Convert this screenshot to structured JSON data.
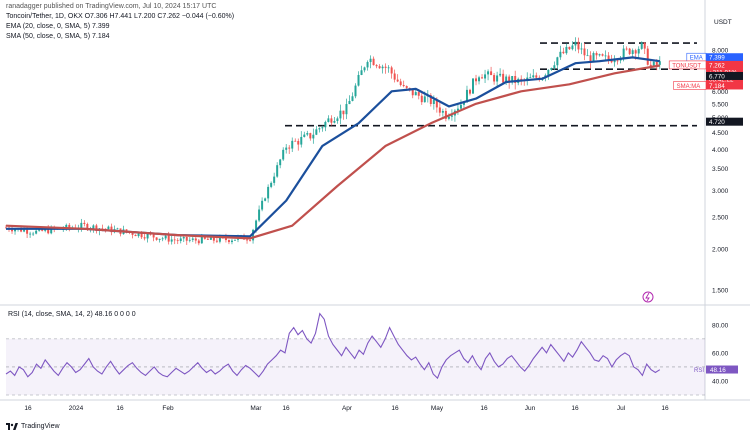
{
  "header": {
    "published_line": "ranadagger published on TradingView.com, Jul 10, 2024 15:17 UTC",
    "symbol_line": "Toncoin/Tether, 1D, OKX  O7.306  H7.441  L7.200  C7.262  −0.044 (−0.60%)",
    "ema_line": "EMA (20, close, 0, SMA, 5)  7.399",
    "sma_line": "SMA (50, close, 0, SMA, 5)  7.184"
  },
  "footer": {
    "brand": "TradingView"
  },
  "chart_data": [
    {
      "type": "candlestick",
      "title": "Toncoin/Tether, 1D, OKX",
      "currency_label": "USDT",
      "y_scale": "log",
      "ylim": [
        1.38,
        9.2
      ],
      "y_ticks": [
        "8.000",
        "7.000",
        "6.000",
        "5.500",
        "5.000",
        "4.500",
        "4.000",
        "3.500",
        "3.000",
        "2.500",
        "2.000",
        "1.500"
      ],
      "x_ticks": [
        "16",
        "2024",
        "16",
        "Feb",
        "Mar",
        "16",
        "Apr",
        "16",
        "May",
        "16",
        "Jun",
        "16",
        "Jul",
        "16"
      ],
      "ohlc_close_path": [
        [
          "2023-12-06",
          2.32
        ],
        [
          "2023-12-16",
          2.25
        ],
        [
          "2024-01-01",
          2.35
        ],
        [
          "2024-01-16",
          2.24
        ],
        [
          "2024-02-01",
          2.12
        ],
        [
          "2024-02-16",
          2.13
        ],
        [
          "2024-02-25",
          2.17
        ],
        [
          "2024-03-01",
          2.9
        ],
        [
          "2024-03-08",
          4.1
        ],
        [
          "2024-03-16",
          4.4
        ],
        [
          "2024-03-23",
          5.0
        ],
        [
          "2024-03-28",
          5.3
        ],
        [
          "2024-04-04",
          7.6
        ],
        [
          "2024-04-11",
          7.0
        ],
        [
          "2024-04-16",
          6.1
        ],
        [
          "2024-04-25",
          5.6
        ],
        [
          "2024-04-30",
          5.1
        ],
        [
          "2024-05-05",
          5.5
        ],
        [
          "2024-05-11",
          6.8
        ],
        [
          "2024-05-16",
          6.6
        ],
        [
          "2024-05-25",
          6.4
        ],
        [
          "2024-06-01",
          6.7
        ],
        [
          "2024-06-06",
          7.6
        ],
        [
          "2024-06-12",
          8.3
        ],
        [
          "2024-06-16",
          7.6
        ],
        [
          "2024-06-23",
          7.5
        ],
        [
          "2024-06-30",
          8.0
        ],
        [
          "2024-07-04",
          8.2
        ],
        [
          "2024-07-07",
          7.1
        ],
        [
          "2024-07-10",
          7.262
        ]
      ],
      "series": [
        {
          "name": "EMA (20, close)",
          "color": "#1b4f9c",
          "last": 7.399,
          "values": [
            [
              "2023-12-06",
              2.3
            ],
            [
              "2024-01-01",
              2.3
            ],
            [
              "2024-02-01",
              2.2
            ],
            [
              "2024-02-25",
              2.18
            ],
            [
              "2024-03-08",
              2.8
            ],
            [
              "2024-03-20",
              4.1
            ],
            [
              "2024-04-01",
              4.8
            ],
            [
              "2024-04-12",
              6.0
            ],
            [
              "2024-04-20",
              6.1
            ],
            [
              "2024-05-01",
              5.4
            ],
            [
              "2024-05-10",
              5.7
            ],
            [
              "2024-05-20",
              6.4
            ],
            [
              "2024-06-01",
              6.55
            ],
            [
              "2024-06-12",
              7.3
            ],
            [
              "2024-06-20",
              7.4
            ],
            [
              "2024-07-01",
              7.6
            ],
            [
              "2024-07-10",
              7.399
            ]
          ]
        },
        {
          "name": "SMA (50, close)",
          "color": "#c0504d",
          "last": 7.184,
          "values": [
            [
              "2023-12-06",
              2.35
            ],
            [
              "2024-01-01",
              2.3
            ],
            [
              "2024-02-01",
              2.2
            ],
            [
              "2024-02-25",
              2.15
            ],
            [
              "2024-03-10",
              2.35
            ],
            [
              "2024-03-25",
              3.1
            ],
            [
              "2024-04-10",
              4.1
            ],
            [
              "2024-04-25",
              4.8
            ],
            [
              "2024-05-10",
              5.5
            ],
            [
              "2024-05-25",
              6.0
            ],
            [
              "2024-06-10",
              6.3
            ],
            [
              "2024-06-25",
              6.8
            ],
            [
              "2024-07-10",
              7.184
            ]
          ]
        }
      ],
      "horizontal_levels": [
        8.4,
        7.0,
        4.72
      ],
      "labels": [
        {
          "text": "EMA",
          "value": "7.399",
          "color": "#2962ff"
        },
        {
          "text": "TONUSDT",
          "value": "7.262",
          "color": "#f23645"
        },
        {
          "text": "",
          "value": "+211.01%",
          "color": "#f23645"
        },
        {
          "text": "",
          "value": "08:42:22",
          "color": "#f23645"
        },
        {
          "text": "SMA:MA",
          "value": "7.184",
          "color": "#f23645"
        },
        {
          "text": "",
          "value": "6.770",
          "color": "#131722"
        },
        {
          "text": "",
          "value": "4.720",
          "color": "#131722"
        }
      ]
    },
    {
      "type": "line",
      "title": "RSI (14, close, SMA, 14, 2)  48.16  0  0  0  0",
      "ylim": [
        30,
        92
      ],
      "y_ticks": [
        "80.00",
        "60.00",
        "40.00"
      ],
      "overbought": 70,
      "oversold": 30,
      "last_label": "RSI",
      "last_value": "48.16",
      "series": [
        {
          "name": "RSI",
          "color": "#7e57c2",
          "values": [
            45,
            47,
            44,
            50,
            48,
            43,
            46,
            52,
            49,
            55,
            51,
            47,
            44,
            49,
            53,
            50,
            46,
            48,
            52,
            56,
            50,
            47,
            45,
            50,
            54,
            49,
            45,
            48,
            51,
            53,
            49,
            46,
            44,
            47,
            50,
            46,
            44,
            43,
            46,
            49,
            47,
            45,
            47,
            50,
            53,
            49,
            46,
            48,
            45,
            47,
            50,
            52,
            47,
            44,
            48,
            51,
            49,
            46,
            43,
            47,
            52,
            55,
            58,
            62,
            60,
            74,
            78,
            73,
            76,
            70,
            67,
            74,
            88,
            84,
            72,
            66,
            62,
            58,
            64,
            60,
            56,
            62,
            59,
            67,
            72,
            68,
            64,
            70,
            78,
            72,
            66,
            62,
            58,
            55,
            57,
            52,
            48,
            53,
            45,
            42,
            50,
            55,
            58,
            60,
            62,
            56,
            53,
            58,
            52,
            48,
            56,
            60,
            54,
            50,
            52,
            56,
            58,
            54,
            50,
            47,
            51,
            56,
            60,
            64,
            60,
            66,
            62,
            58,
            54,
            60,
            57,
            62,
            68,
            64,
            60,
            55,
            54,
            58,
            56,
            50,
            55,
            58,
            60,
            58,
            50,
            48,
            44,
            52,
            48,
            46,
            48
          ]
        }
      ]
    }
  ]
}
